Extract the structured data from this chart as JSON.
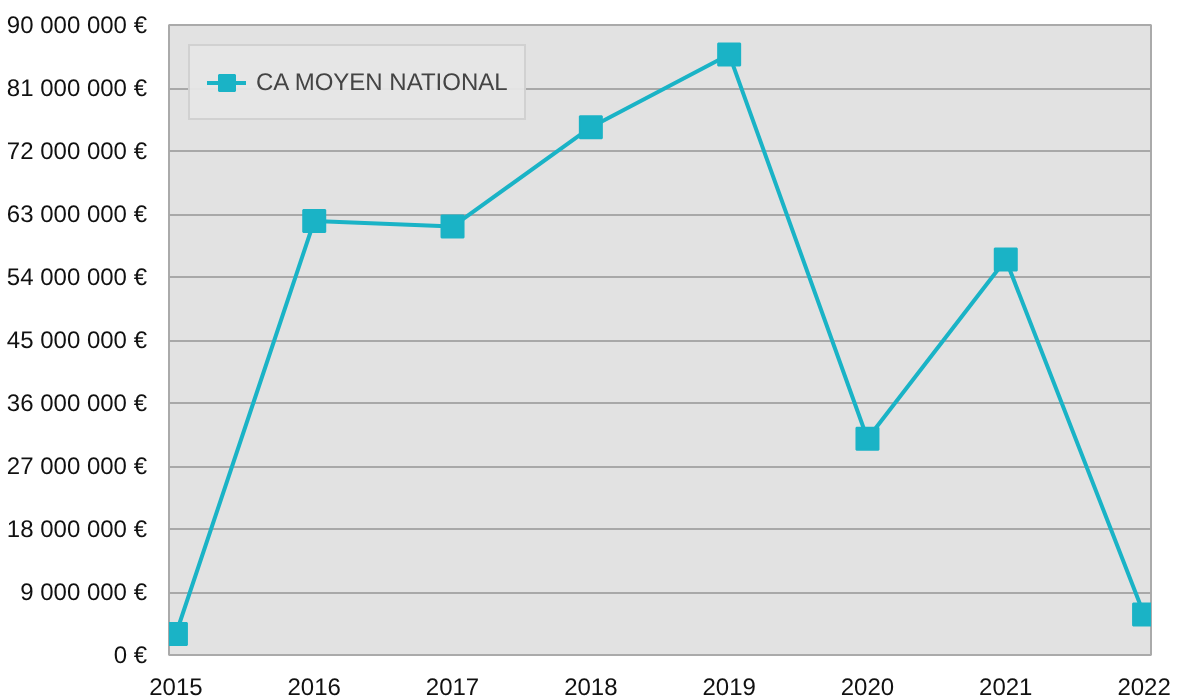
{
  "chart_data": {
    "type": "line",
    "categories": [
      "2015",
      "2016",
      "2017",
      "2018",
      "2019",
      "2020",
      "2021",
      "2022"
    ],
    "series": [
      {
        "name": "CA MOYEN NATIONAL",
        "color": "#1ab3c6",
        "values": [
          3000000,
          62000000,
          61200000,
          75400000,
          85800000,
          30900000,
          56500000,
          5800000
        ]
      }
    ],
    "ylim": [
      0,
      90000000
    ],
    "yticks": [
      {
        "value": 0,
        "label": "0 €"
      },
      {
        "value": 9000000,
        "label": "9 000 000 €"
      },
      {
        "value": 18000000,
        "label": "18 000 000 €"
      },
      {
        "value": 27000000,
        "label": "27 000 000 €"
      },
      {
        "value": 36000000,
        "label": "36 000 000 €"
      },
      {
        "value": 45000000,
        "label": "45 000 000 €"
      },
      {
        "value": 54000000,
        "label": "54 000 000 €"
      },
      {
        "value": 63000000,
        "label": "63 000 000 €"
      },
      {
        "value": 72000000,
        "label": "72 000 000 €"
      },
      {
        "value": 81000000,
        "label": "81 000 000 €"
      },
      {
        "value": 90000000,
        "label": "90 000 000 €"
      }
    ],
    "grid": "y",
    "legend": "top left",
    "marker": "square",
    "line_style": "solid"
  }
}
